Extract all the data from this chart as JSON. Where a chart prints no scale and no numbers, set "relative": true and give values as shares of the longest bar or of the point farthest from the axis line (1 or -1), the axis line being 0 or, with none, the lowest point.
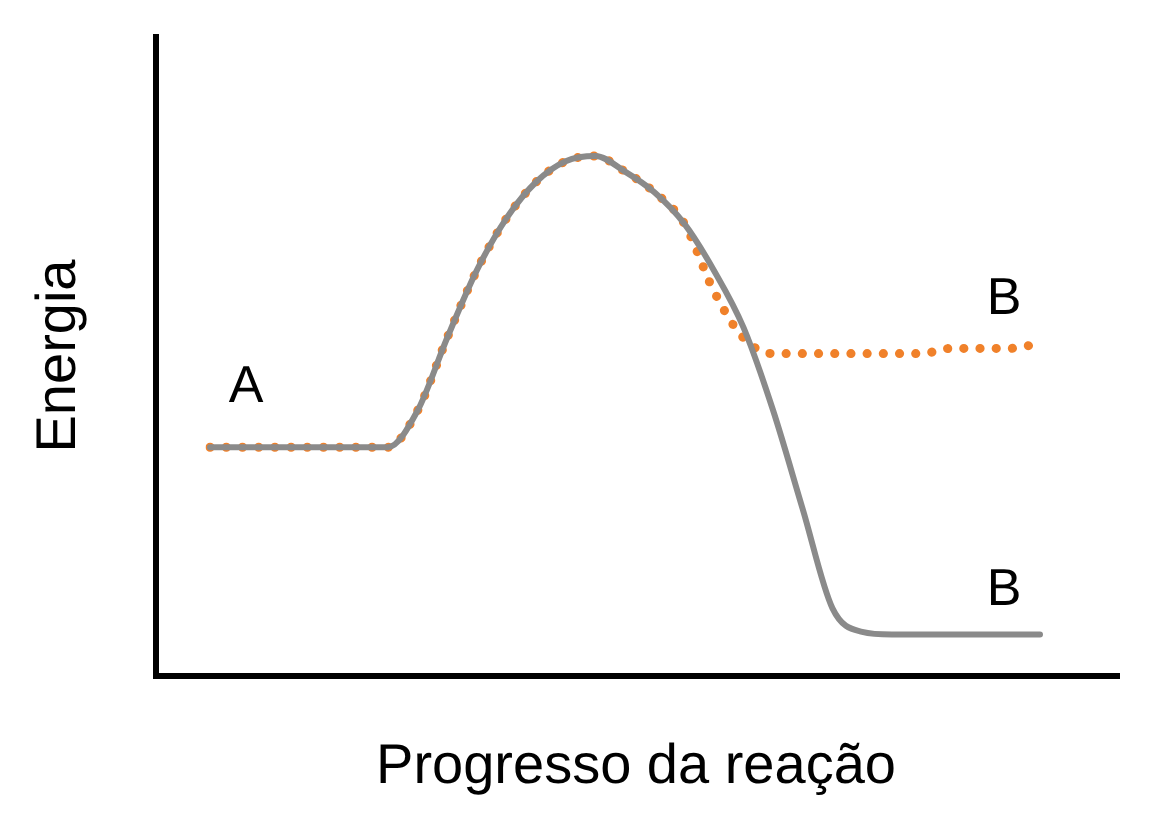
{
  "chart_data": {
    "type": "line",
    "relative": true,
    "xlabel": "Progresso da reação",
    "ylabel": "Energia",
    "categories": [
      null,
      null,
      null,
      null,
      null,
      null,
      null,
      null,
      null,
      null,
      null,
      null,
      null,
      null,
      null,
      null,
      null,
      null,
      null,
      null,
      null,
      null,
      null,
      null,
      null,
      null,
      null,
      null,
      null
    ],
    "series": [
      {
        "color": "#8a8a8a",
        "line_style": "solid",
        "values": [
          0.44,
          0.44,
          0.44,
          0.44,
          0.44,
          0.44,
          0.44,
          0.51,
          0.65,
          0.78,
          0.88,
          0.95,
          0.99,
          1,
          0.97,
          0.93,
          0.87,
          0.78,
          0.67,
          0.51,
          0.32,
          0.13,
          0.085,
          0.08,
          0.08,
          0.08,
          0.08,
          0.08,
          0.08
        ]
      },
      {
        "color": "#f0812a",
        "line_style": "dotted",
        "values": [
          0.44,
          0.44,
          0.44,
          0.44,
          0.44,
          0.44,
          0.44,
          0.51,
          0.65,
          0.78,
          0.88,
          0.95,
          0.99,
          1,
          0.97,
          0.93,
          0.87,
          0.74,
          0.65,
          0.62,
          0.62,
          0.62,
          0.62,
          0.62,
          0.62,
          0.63,
          0.63,
          0.63,
          0.64
        ]
      }
    ],
    "annotations": [
      "A",
      "B",
      "B"
    ],
    "legend": false,
    "marker": "none"
  }
}
